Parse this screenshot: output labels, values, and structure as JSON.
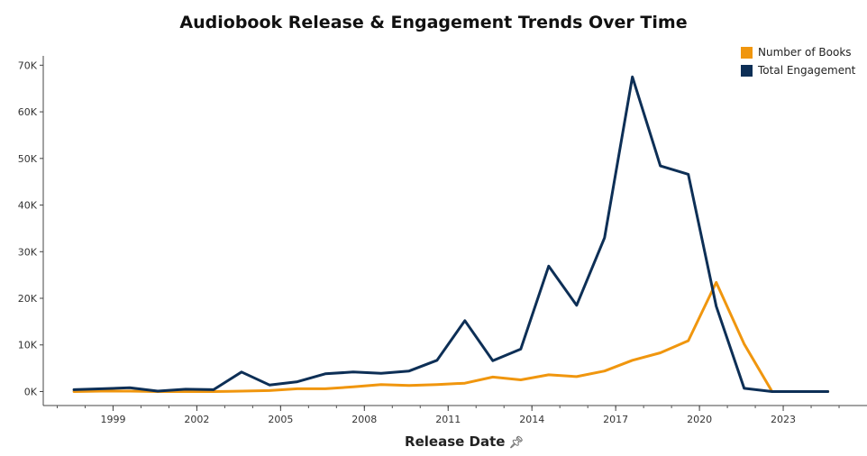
{
  "title": "Audiobook Release & Engagement Trends Over Time",
  "xlabel": "Release Date",
  "pin_icon": "pin-icon",
  "chart_data": {
    "type": "line",
    "x": [
      1997.6,
      1998.6,
      1999.6,
      2000.6,
      2001.6,
      2002.6,
      2003.6,
      2004.6,
      2005.6,
      2006.6,
      2007.6,
      2008.6,
      2009.6,
      2010.6,
      2011.6,
      2012.6,
      2013.6,
      2014.6,
      2015.6,
      2016.6,
      2017.6,
      2018.6,
      2019.6,
      2020.6,
      2021.6,
      2022.6,
      2023.6,
      2024.6
    ],
    "series": [
      {
        "name": "Number of Books",
        "color": "#F0960E",
        "values": [
          0,
          100,
          100,
          0,
          0,
          0,
          100,
          200,
          600,
          600,
          1000,
          1500,
          1300,
          1500,
          1800,
          3100,
          2500,
          3600,
          3200,
          4400,
          6700,
          8300,
          10900,
          23400,
          10200,
          0,
          0,
          0
        ]
      },
      {
        "name": "Total Engagement",
        "color": "#0D2F56",
        "values": [
          400,
          600,
          800,
          100,
          500,
          400,
          4200,
          1400,
          2100,
          3800,
          4200,
          3900,
          4400,
          6700,
          15200,
          6600,
          9100,
          26900,
          18500,
          33000,
          67500,
          48400,
          46600,
          18300,
          700,
          0,
          0,
          0
        ]
      }
    ],
    "xticks": [
      "1999",
      "2002",
      "2005",
      "2008",
      "2011",
      "2014",
      "2017",
      "2020",
      "2023"
    ],
    "xtick_values": [
      1999,
      2002,
      2005,
      2008,
      2011,
      2014,
      2017,
      2020,
      2023
    ],
    "yticks": [
      "0K",
      "10K",
      "20K",
      "30K",
      "40K",
      "50K",
      "60K",
      "70K"
    ],
    "ytick_values": [
      0,
      10000,
      20000,
      30000,
      40000,
      50000,
      60000,
      70000
    ],
    "xlim": [
      1996.5,
      2026
    ],
    "ylim": [
      -3000,
      72000
    ],
    "grid": false,
    "legend": "top-right"
  }
}
